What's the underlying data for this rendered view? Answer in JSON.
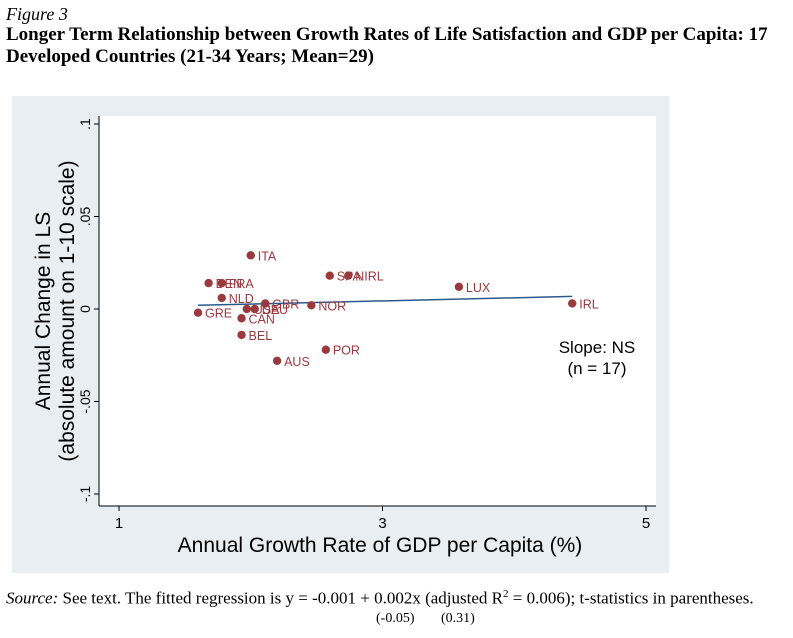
{
  "figure_label": "Figure 3",
  "title": "Longer Term Relationship between Growth Rates of Life Satisfaction and GDP per Capita: 17 Developed Countries (21-34 Years; Mean=29)",
  "source": {
    "label": "Source:",
    "text_before_sup": " See text. The fitted regression is y = -0.001 + 0.002x (adjusted R",
    "sup": "2",
    "text_after_sup": " = 0.006); t-statistics in parentheses.",
    "tstat_intercept": "(-0.05)",
    "tstat_slope": "(0.31)"
  },
  "chart_data": {
    "type": "scatter",
    "xlabel": "Annual Growth Rate of GDP per Capita (%)",
    "ylabel_line1": "Annual Change in LS",
    "ylabel_line2": "(absolute amount on 1-10 scale)",
    "xlim": [
      1,
      5
    ],
    "ylim": [
      -0.1,
      0.1
    ],
    "x_ticks": [
      1,
      3,
      5
    ],
    "x_tick_labels": [
      "1",
      "3",
      "5"
    ],
    "y_ticks": [
      -0.1,
      -0.05,
      0,
      0.05,
      0.1
    ],
    "y_tick_labels": [
      "-.1",
      "-.05",
      "0",
      ".05",
      ".1"
    ],
    "grid": false,
    "point_color": "#9b3a3e",
    "line_color": "#2a5a8a",
    "annotation_line1": "Slope: NS",
    "annotation_line2": "(n = 17)",
    "points": [
      {
        "label": "ITA",
        "x": 2.0,
        "y": 0.029
      },
      {
        "label": "SPA",
        "x": 2.6,
        "y": 0.018
      },
      {
        "label": "NIRL",
        "x": 2.74,
        "y": 0.018
      },
      {
        "label": "LUX",
        "x": 3.58,
        "y": 0.012
      },
      {
        "label": "DEN",
        "x": 1.68,
        "y": 0.014
      },
      {
        "label": "FRA",
        "x": 1.78,
        "y": 0.014
      },
      {
        "label": "NLD",
        "x": 1.78,
        "y": 0.006
      },
      {
        "label": "GBR",
        "x": 2.11,
        "y": 0.003
      },
      {
        "label": "NOR",
        "x": 2.46,
        "y": 0.002
      },
      {
        "label": "IRL",
        "x": 4.44,
        "y": 0.003
      },
      {
        "label": "GRE",
        "x": 1.6,
        "y": -0.002
      },
      {
        "label": "USA",
        "x": 1.97,
        "y": 0.0
      },
      {
        "label": "DEU",
        "x": 2.03,
        "y": 0.0
      },
      {
        "label": "CAN",
        "x": 1.93,
        "y": -0.005
      },
      {
        "label": "BEL",
        "x": 1.93,
        "y": -0.014
      },
      {
        "label": "POR",
        "x": 2.57,
        "y": -0.022
      },
      {
        "label": "AUS",
        "x": 2.2,
        "y": -0.028
      }
    ],
    "fit": {
      "x_start": 1.6,
      "y_start": 0.002,
      "x_end": 4.44,
      "y_end": 0.0068
    }
  }
}
